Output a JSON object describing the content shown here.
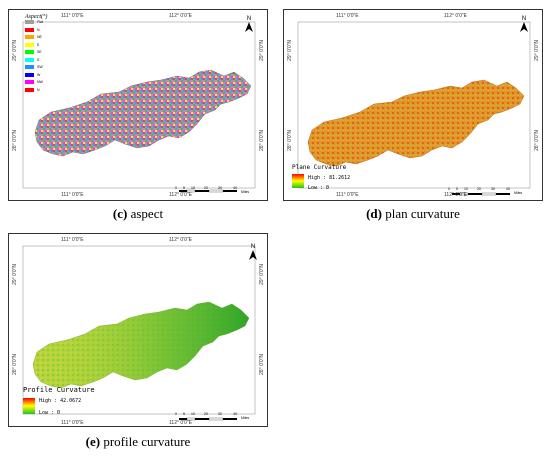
{
  "panels": {
    "c": {
      "coords": {
        "top_left": "111° 0'0\"E",
        "top_right": "112° 0'0\"E",
        "bottom_left": "111° 0'0\"E",
        "bottom_right": "112° 0'0\"E",
        "left_top": "29° 0'0\"N",
        "left_bottom": "28° 0'0\"N",
        "right_top": "29° 0'0\"N",
        "right_bottom": "28° 0'0\"N"
      },
      "legend": {
        "title": "Aspect(°)",
        "items": [
          {
            "label": "Flat",
            "color": "#9e9e9e"
          },
          {
            "label": "N",
            "color": "#ff0000"
          },
          {
            "label": "NE",
            "color": "#ffa500"
          },
          {
            "label": "E",
            "color": "#ffff00"
          },
          {
            "label": "SE",
            "color": "#00ff00"
          },
          {
            "label": "S",
            "color": "#00ffff"
          },
          {
            "label": "SW",
            "color": "#1e90ff"
          },
          {
            "label": "W",
            "color": "#0000ff"
          },
          {
            "label": "NW",
            "color": "#ff00ff"
          },
          {
            "label": "N",
            "color": "#ff0000"
          }
        ]
      },
      "north": "N",
      "scale": {
        "ticks": [
          "0",
          "5",
          "10",
          "20",
          "30",
          "40"
        ],
        "unit": "Miles"
      },
      "caption_letter": "(c)",
      "caption_text": " aspect"
    },
    "d": {
      "coords": {
        "top_left": "111° 0'0\"E",
        "top_right": "112° 0'0\"E",
        "bottom_left": "111° 0'0\"E",
        "bottom_right": "112° 0'0\"E",
        "left_top": "29° 0'0\"N",
        "left_bottom": "28° 0'0\"N",
        "right_top": "29° 0'0\"N",
        "right_bottom": "28° 0'0\"N"
      },
      "colorbar": {
        "title": "Plane Curvature",
        "high": "High : 81.2612",
        "low": "Low : 0"
      },
      "north": "N",
      "scale": {
        "ticks": [
          "0",
          "5",
          "10",
          "20",
          "30",
          "40"
        ],
        "unit": "Miles"
      },
      "caption_letter": "(d)",
      "caption_text": " plan curvature"
    },
    "e": {
      "coords": {
        "top_left": "111° 0'0\"E",
        "top_right": "112° 0'0\"E",
        "bottom_left": "111° 0'0\"E",
        "bottom_right": "112° 0'0\"E",
        "left_top": "29° 0'0\"N",
        "left_bottom": "28° 0'0\"N",
        "right_top": "29° 0'0\"N",
        "right_bottom": "28° 0'0\"N"
      },
      "colorbar": {
        "title": "Profile Curvature",
        "high": "High : 42.0672",
        "low": "Low : 0"
      },
      "north": "N",
      "scale": {
        "ticks": [
          "0",
          "5",
          "10",
          "20",
          "30",
          "40"
        ],
        "unit": "Miles"
      },
      "caption_letter": "(e)",
      "caption_text": " profile curvature"
    }
  },
  "colors": {
    "frame": "#333333",
    "aspect_fill": "#b07ac0",
    "plan_fill": "#e58a1f",
    "profile_fill": "#a8d23a",
    "profile_east": "#3fae2a"
  }
}
